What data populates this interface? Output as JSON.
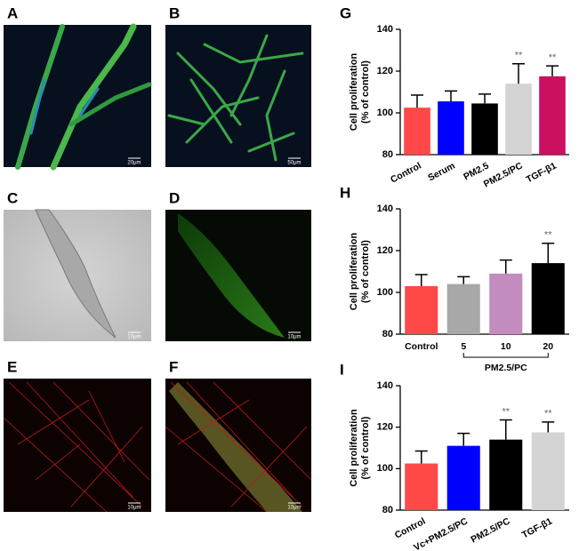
{
  "image_panels": [
    {
      "letter": "A",
      "scale": "20μm"
    },
    {
      "letter": "B",
      "scale": "50μm"
    },
    {
      "letter": "C",
      "scale": "10μm"
    },
    {
      "letter": "D",
      "scale": "10μm"
    },
    {
      "letter": "E",
      "scale": "10μm"
    },
    {
      "letter": "F",
      "scale": "10μm"
    }
  ],
  "chart_data": [
    {
      "type": "bar",
      "letter": "G",
      "y_label": [
        "Cell proliferation",
        "(% of control)"
      ],
      "categories": [
        "Control",
        "Serum",
        "PM2.5",
        "PM2.5/PC",
        "TGF-β1"
      ],
      "values": [
        102.5,
        105.5,
        104.5,
        114,
        117.5
      ],
      "errors": [
        6,
        5,
        4.5,
        9.5,
        5
      ],
      "colors": [
        "#ff4848",
        "#0000ff",
        "#000000",
        "#d4d4d4",
        "#cc1060"
      ],
      "significance": [
        null,
        null,
        null,
        "**",
        "**"
      ],
      "ylim": [
        80,
        140
      ],
      "yticks": [
        80,
        100,
        120,
        140
      ]
    },
    {
      "type": "bar",
      "letter": "H",
      "y_label": [
        "Cell proliferation",
        "(% of control)"
      ],
      "categories": [
        "Control",
        "5",
        "10",
        "20"
      ],
      "values": [
        103,
        104,
        109,
        114
      ],
      "errors": [
        5.5,
        3.5,
        6.5,
        9.5
      ],
      "colors": [
        "#ff4848",
        "#a8a8a8",
        "#c48bbf",
        "#000000"
      ],
      "significance": [
        null,
        null,
        null,
        "**"
      ],
      "group_label": "PM2.5/PC",
      "ylim": [
        80,
        140
      ],
      "yticks": [
        80,
        100,
        120,
        140
      ]
    },
    {
      "type": "bar",
      "letter": "I",
      "y_label": [
        "Cell proliferation",
        "(% of control)"
      ],
      "categories": [
        "Control",
        "Vc+PM2.5/PC",
        "PM2.5/PC",
        "TGF-β1"
      ],
      "values": [
        102.5,
        111,
        114,
        117.5
      ],
      "errors": [
        6,
        6,
        9.5,
        5
      ],
      "colors": [
        "#ff4848",
        "#0000ff",
        "#000000",
        "#d4d4d4"
      ],
      "significance": [
        null,
        null,
        "**",
        "**"
      ],
      "ylim": [
        80,
        140
      ],
      "yticks": [
        80,
        100,
        120,
        140
      ]
    }
  ]
}
